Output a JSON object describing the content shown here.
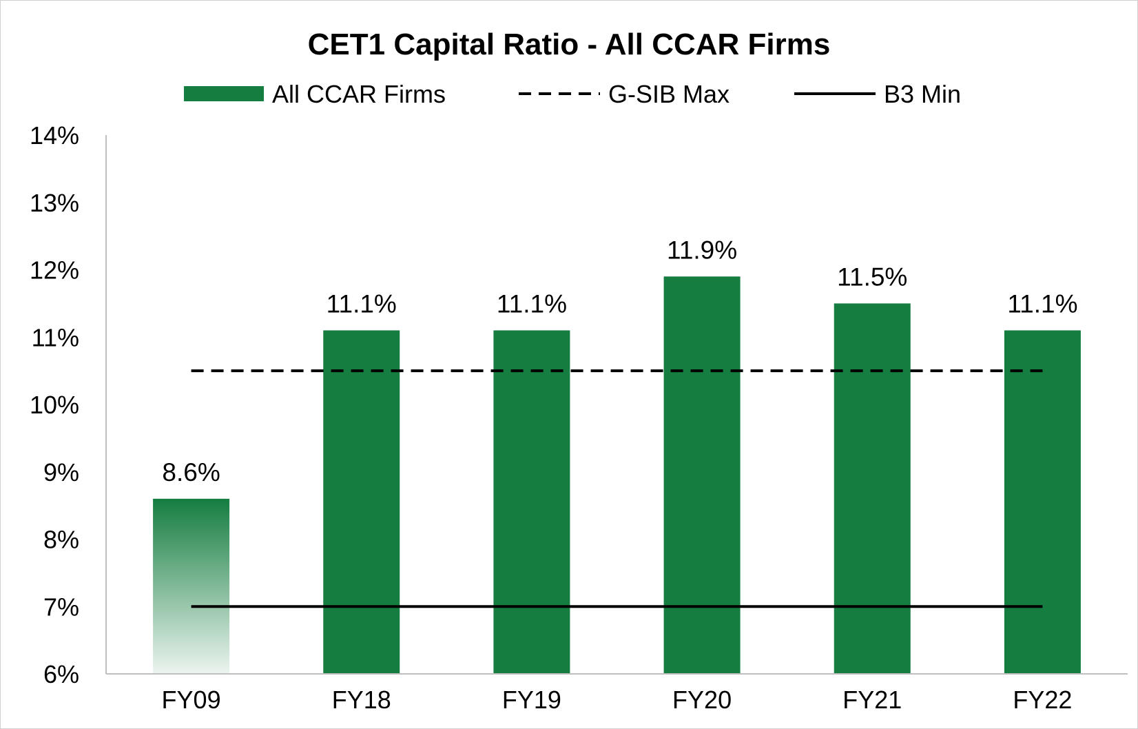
{
  "chart_data": {
    "type": "bar",
    "title": "CET1 Capital Ratio - All CCAR Firms",
    "categories": [
      "FY09",
      "FY18",
      "FY19",
      "FY20",
      "FY21",
      "FY22"
    ],
    "series": [
      {
        "name": "All CCAR Firms",
        "type": "bar",
        "values": [
          8.6,
          11.1,
          11.1,
          11.9,
          11.5,
          11.1
        ],
        "labels": [
          "8.6%",
          "11.1%",
          "11.1%",
          "11.9%",
          "11.5%",
          "11.1%"
        ],
        "color": "#157D40",
        "first_bar_fill": "gradient fading to white toward the bottom"
      }
    ],
    "reference_lines": [
      {
        "name": "G-SIB Max",
        "value": 10.5,
        "style": "dashed",
        "color": "#000000"
      },
      {
        "name": "B3 Min",
        "value": 7.0,
        "style": "solid",
        "color": "#000000"
      }
    ],
    "legend": {
      "position": "top",
      "entries": [
        "All CCAR Firms",
        "G-SIB Max",
        "B3 Min"
      ]
    },
    "y_axis": {
      "min": 6,
      "max": 14,
      "step": 1,
      "unit": "%",
      "tick_labels": [
        "6%",
        "7%",
        "8%",
        "9%",
        "10%",
        "11%",
        "12%",
        "13%",
        "14%"
      ]
    },
    "xlabel": "",
    "ylabel": "",
    "grid": false
  }
}
